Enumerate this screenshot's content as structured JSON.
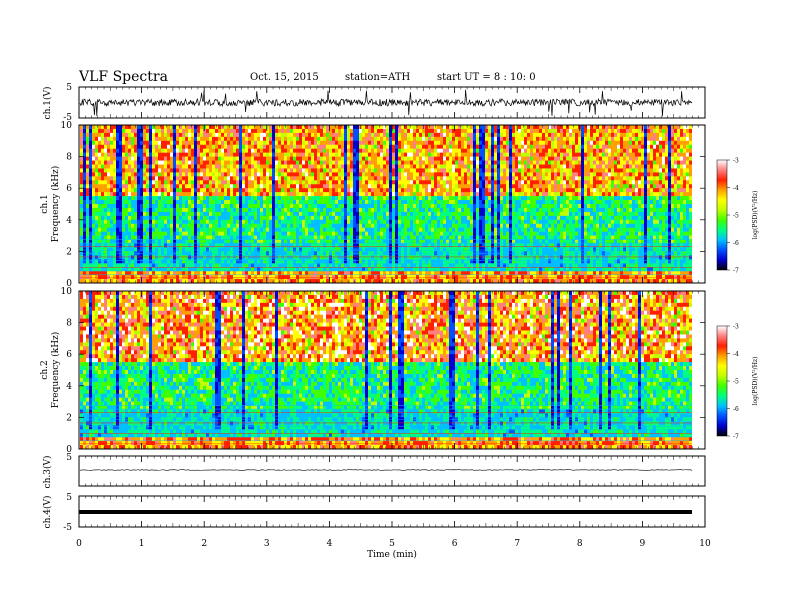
{
  "header": {
    "title": "VLF  Spectra",
    "date": "Oct. 15, 2015",
    "station": "station=ATH",
    "start": "start  UT =   8 : 10: 0"
  },
  "chart_data": [
    {
      "type": "line",
      "title": "",
      "ylabel": "ch.1(V)",
      "ylim": [
        -5,
        5
      ],
      "y_ticks": [
        "5",
        "-5"
      ],
      "description_trace": "noisy voltage trace near 0 V",
      "xlim": [
        0,
        10
      ]
    },
    {
      "type": "heatmap",
      "ylabel_channel": "ch.1",
      "ylabel": "Frequency (kHz)",
      "ylim": [
        0,
        10
      ],
      "y_ticks": [
        "0",
        "2",
        "4",
        "6",
        "8",
        "10"
      ],
      "xlim": [
        0,
        10
      ],
      "colorbar": {
        "label": "log(PSD)(V²/Hz)",
        "ticks": [
          "-3",
          "-4",
          "-5",
          "-6",
          "-7"
        ],
        "range": [
          -7,
          -3
        ]
      }
    },
    {
      "type": "heatmap",
      "ylabel_channel": "ch.2",
      "ylabel": "Frequency (kHz)",
      "ylim": [
        0,
        10
      ],
      "y_ticks": [
        "0",
        "2",
        "4",
        "6",
        "8",
        "10"
      ],
      "xlim": [
        0,
        10
      ],
      "colorbar": {
        "label": "log(PSD)(V²/Hz)",
        "ticks": [
          "-3",
          "-4",
          "-5",
          "-6",
          "-7"
        ],
        "range": [
          -7,
          -3
        ]
      }
    },
    {
      "type": "line",
      "ylabel": "ch.3(V)",
      "ylim": [
        -5,
        5
      ],
      "y_ticks": [
        "5"
      ],
      "xlim": [
        0,
        10
      ]
    },
    {
      "type": "line",
      "ylabel": "ch.4(V)",
      "ylim": [
        -5,
        5
      ],
      "y_ticks": [
        "5",
        "-5"
      ],
      "xlim": [
        0,
        10
      ],
      "xlabel": "Time (min)",
      "x_ticks": [
        "0",
        "1",
        "2",
        "3",
        "4",
        "5",
        "6",
        "7",
        "8",
        "9",
        "10"
      ]
    }
  ],
  "colors": {
    "colormap": [
      "#000000",
      "#0000cc",
      "#0050ff",
      "#00c0ff",
      "#00ff80",
      "#40ff00",
      "#c0ff00",
      "#ffff00",
      "#ffa000",
      "#ff2000",
      "#ff8080",
      "#ffffff"
    ]
  }
}
